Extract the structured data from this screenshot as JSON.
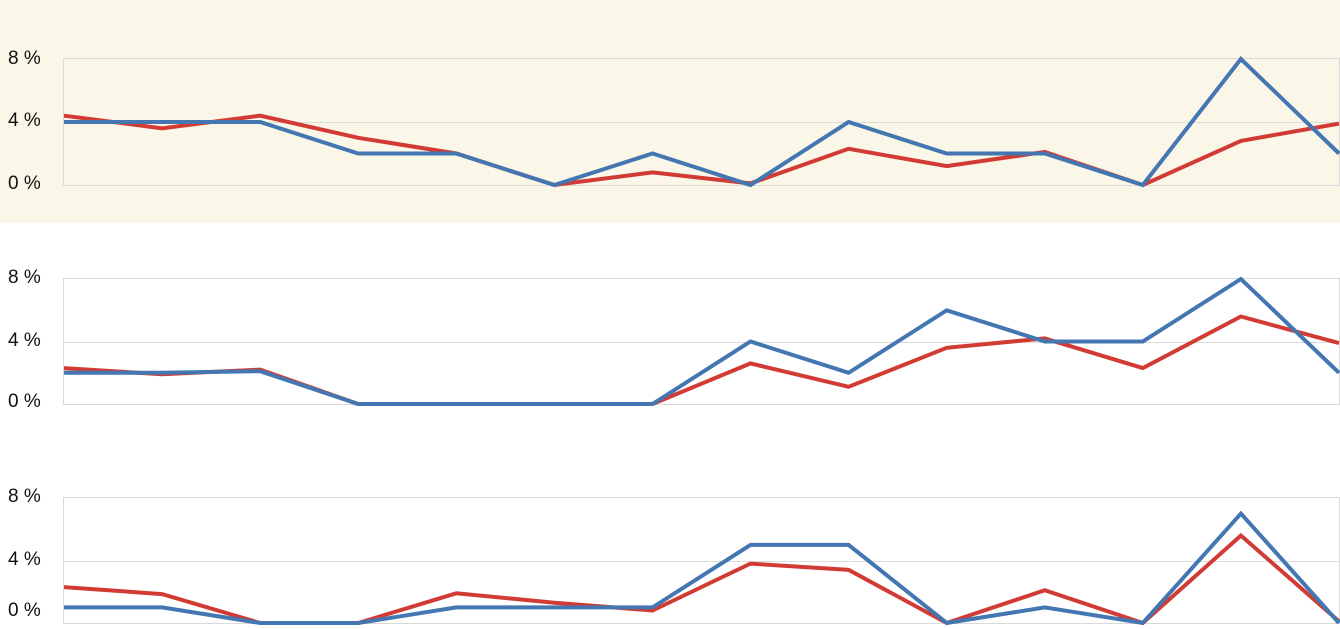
{
  "page": {
    "background_color": "#ffffff",
    "highlight_panel_color": "#faf6e8"
  },
  "colors": {
    "blue_line": "#4477b2",
    "red_line": "#d23b34",
    "gridline": "#dcdcdc",
    "plot_border": "#d9d9d9",
    "axis_label": "#111111"
  },
  "chart_data": [
    {
      "type": "line",
      "title": "",
      "background": "#faf6e8",
      "num_points": 14,
      "xlabel": "",
      "ylabel": "",
      "ylim": [
        0,
        8
      ],
      "yticks": [
        0,
        4,
        8
      ],
      "ytick_labels": [
        "0 %",
        "4 %",
        "8 %"
      ],
      "grid": true,
      "legend": "none",
      "series": [
        {
          "name": "red",
          "color": "#d23b34",
          "values": [
            4.4,
            3.6,
            4.4,
            3.0,
            2.0,
            0,
            0.8,
            0.1,
            2.3,
            1.2,
            2.1,
            0,
            2.8,
            3.9
          ]
        },
        {
          "name": "blue",
          "color": "#4477b2",
          "values": [
            4,
            4,
            4,
            2,
            2,
            0,
            2,
            0,
            4,
            2,
            2,
            0,
            8,
            2
          ]
        }
      ]
    },
    {
      "type": "line",
      "title": "",
      "background": "#ffffff",
      "num_points": 14,
      "xlabel": "",
      "ylabel": "",
      "ylim": [
        0,
        8
      ],
      "yticks": [
        0,
        4,
        8
      ],
      "ytick_labels": [
        "0 %",
        "4 %",
        "8 %"
      ],
      "grid": true,
      "legend": "none",
      "series": [
        {
          "name": "red",
          "color": "#d23b34",
          "values": [
            2.3,
            1.9,
            2.2,
            0,
            0,
            0,
            0,
            2.6,
            1.1,
            3.6,
            4.2,
            2.3,
            5.6,
            3.9
          ]
        },
        {
          "name": "blue",
          "color": "#4477b2",
          "values": [
            2,
            2,
            2.1,
            0,
            0,
            0,
            0,
            4,
            2,
            6,
            4,
            4,
            8,
            2
          ]
        }
      ]
    },
    {
      "type": "line",
      "title": "",
      "background": "#ffffff",
      "num_points": 14,
      "xlabel": "",
      "ylabel": "",
      "ylim": [
        0,
        8
      ],
      "yticks": [
        0,
        4,
        8
      ],
      "ytick_labels": [
        "0 %",
        "4 %",
        "8 %"
      ],
      "grid": true,
      "legend": "none",
      "series": [
        {
          "name": "red",
          "color": "#d23b34",
          "values": [
            2.3,
            1.85,
            0,
            0,
            1.9,
            1.3,
            0.8,
            3.8,
            3.4,
            0,
            2.1,
            0,
            5.6,
            0.1
          ]
        },
        {
          "name": "blue",
          "color": "#4477b2",
          "values": [
            1,
            1,
            0,
            0,
            1,
            1,
            1,
            5,
            5,
            0,
            1,
            0,
            7,
            0
          ]
        }
      ]
    }
  ]
}
